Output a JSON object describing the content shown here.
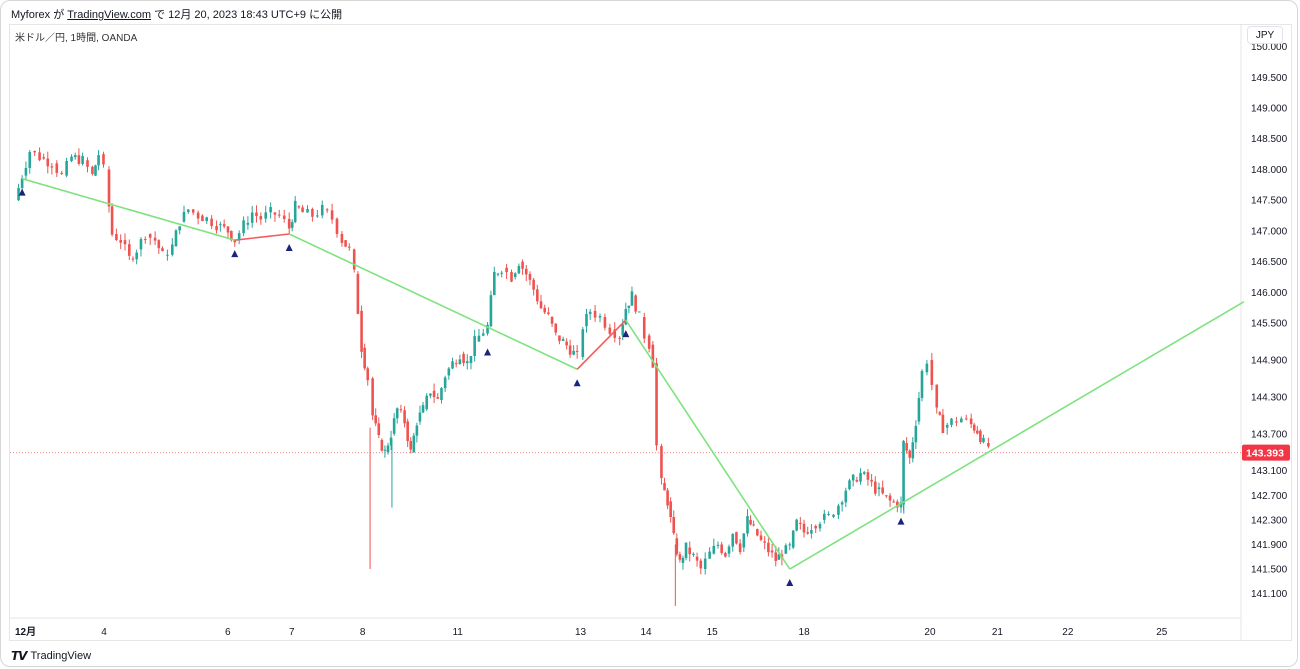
{
  "header": {
    "author": "Myforex",
    "ga": "が",
    "site": "TradingView.com",
    "de": "で",
    "published": "12月 20, 2023 18:43 UTC+9 に公開"
  },
  "symbol_label": "米ドル／円, 1時間, OANDA",
  "currency_button": "JPY",
  "footer": {
    "logo_icon": "tradingview-logo-icon",
    "brand": "TradingView"
  },
  "colors": {
    "up": "#26a69a",
    "down": "#ef5350",
    "trend_green": "#7ee37e",
    "trend_red": "#f45b5b",
    "marker": "#1a237e",
    "price_line": "#f28b8b",
    "price_tag": "#f23645"
  },
  "chart_data": {
    "type": "line",
    "title": "",
    "xlabel": "",
    "ylabel": "",
    "ylim": [
      140.85,
      150.35
    ],
    "y_ticks": [
      "150.000",
      "149.500",
      "149.000",
      "148.500",
      "148.000",
      "147.500",
      "147.000",
      "146.500",
      "146.000",
      "145.500",
      "144.900",
      "144.300",
      "143.700",
      "143.100",
      "142.700",
      "142.300",
      "141.900",
      "141.500",
      "141.100"
    ],
    "x_ticks": [
      {
        "label": "12月",
        "t": 0
      },
      {
        "label": "4",
        "t": 0.0726
      },
      {
        "label": "6",
        "t": 0.1733
      },
      {
        "label": "7",
        "t": 0.2254
      },
      {
        "label": "8",
        "t": 0.2831
      },
      {
        "label": "11",
        "t": 0.3584
      },
      {
        "label": "13",
        "t": 0.4581
      },
      {
        "label": "14",
        "t": 0.5114
      },
      {
        "label": "15",
        "t": 0.5652
      },
      {
        "label": "18",
        "t": 0.64
      },
      {
        "label": "20",
        "t": 0.7424
      },
      {
        "label": "21",
        "t": 0.7973
      },
      {
        "label": "22",
        "t": 0.8546
      },
      {
        "label": "25",
        "t": 0.931
      }
    ],
    "current_price": "143.393",
    "current_price_value": 143.393,
    "zigzag_segments": [
      {
        "color": "green",
        "points": [
          [
            0.0058,
            147.85
          ],
          [
            0.1788,
            146.85
          ]
        ]
      },
      {
        "color": "red",
        "points": [
          [
            0.1788,
            146.85
          ],
          [
            0.2231,
            146.95
          ]
        ]
      },
      {
        "color": "green",
        "points": [
          [
            0.2231,
            146.95
          ],
          [
            0.4574,
            144.75
          ]
        ]
      },
      {
        "color": "red",
        "points": [
          [
            0.4574,
            144.75
          ],
          [
            0.497,
            145.55
          ]
        ]
      },
      {
        "color": "green",
        "points": [
          [
            0.497,
            145.55
          ],
          [
            0.6304,
            141.5
          ]
        ]
      },
      {
        "color": "green",
        "points": [
          [
            0.6304,
            141.5
          ],
          [
            1.0,
            145.85
          ]
        ]
      }
    ],
    "markers": [
      {
        "t": 0.0058,
        "price": 147.85
      },
      {
        "t": 0.1788,
        "price": 146.85
      },
      {
        "t": 0.2231,
        "price": 146.95
      },
      {
        "t": 0.3845,
        "price": 145.25
      },
      {
        "t": 0.4574,
        "price": 144.75
      },
      {
        "t": 0.497,
        "price": 145.55
      },
      {
        "t": 0.6304,
        "price": 141.5
      },
      {
        "t": 0.7209,
        "price": 142.5
      }
    ],
    "price_path": [
      [
        0,
        147.5
      ],
      [
        0.0058,
        147.9
      ],
      [
        0.012,
        148.3
      ],
      [
        0.02,
        148.2
      ],
      [
        0.03,
        148.1
      ],
      [
        0.038,
        147.9
      ],
      [
        0.046,
        148.2
      ],
      [
        0.055,
        148.15
      ],
      [
        0.063,
        147.9
      ],
      [
        0.068,
        148.25
      ],
      [
        0.072,
        148.0
      ],
      [
        0.0765,
        147.4
      ],
      [
        0.079,
        146.95
      ],
      [
        0.086,
        146.85
      ],
      [
        0.093,
        146.55
      ],
      [
        0.099,
        146.7
      ],
      [
        0.106,
        146.95
      ],
      [
        0.114,
        146.85
      ],
      [
        0.12,
        146.6
      ],
      [
        0.128,
        146.75
      ],
      [
        0.134,
        147.15
      ],
      [
        0.141,
        147.35
      ],
      [
        0.149,
        147.25
      ],
      [
        0.156,
        147.2
      ],
      [
        0.164,
        147.1
      ],
      [
        0.1733,
        147.0
      ],
      [
        0.1788,
        146.85
      ],
      [
        0.186,
        147.1
      ],
      [
        0.193,
        147.3
      ],
      [
        0.2,
        147.2
      ],
      [
        0.208,
        147.3
      ],
      [
        0.215,
        147.25
      ],
      [
        0.2231,
        147.05
      ],
      [
        0.228,
        147.4
      ],
      [
        0.234,
        147.3
      ],
      [
        0.242,
        147.25
      ],
      [
        0.25,
        147.35
      ],
      [
        0.258,
        147.2
      ],
      [
        0.266,
        146.85
      ],
      [
        0.272,
        146.7
      ],
      [
        0.276,
        146.3
      ],
      [
        0.279,
        145.7
      ],
      [
        0.282,
        145.1
      ],
      [
        0.287,
        144.6
      ],
      [
        0.291,
        144.0
      ],
      [
        0.296,
        143.6
      ],
      [
        0.301,
        143.4
      ],
      [
        0.306,
        143.7
      ],
      [
        0.311,
        144.1
      ],
      [
        0.317,
        143.9
      ],
      [
        0.322,
        143.4
      ],
      [
        0.327,
        143.9
      ],
      [
        0.332,
        144.1
      ],
      [
        0.338,
        144.4
      ],
      [
        0.344,
        144.25
      ],
      [
        0.35,
        144.65
      ],
      [
        0.356,
        144.85
      ],
      [
        0.362,
        145.0
      ],
      [
        0.368,
        144.85
      ],
      [
        0.374,
        145.2
      ],
      [
        0.3845,
        145.45
      ],
      [
        0.39,
        146.3
      ],
      [
        0.396,
        146.4
      ],
      [
        0.404,
        146.25
      ],
      [
        0.41,
        146.5
      ],
      [
        0.416,
        146.3
      ],
      [
        0.422,
        146.05
      ],
      [
        0.428,
        145.75
      ],
      [
        0.434,
        145.6
      ],
      [
        0.44,
        145.3
      ],
      [
        0.446,
        145.2
      ],
      [
        0.4574,
        144.95
      ],
      [
        0.462,
        145.45
      ],
      [
        0.468,
        145.7
      ],
      [
        0.476,
        145.6
      ],
      [
        0.484,
        145.4
      ],
      [
        0.492,
        145.3
      ],
      [
        0.497,
        145.75
      ],
      [
        0.502,
        145.95
      ],
      [
        0.508,
        145.6
      ],
      [
        0.512,
        145.3
      ],
      [
        0.516,
        145.15
      ],
      [
        0.519,
        144.85
      ],
      [
        0.522,
        143.5
      ],
      [
        0.526,
        142.9
      ],
      [
        0.531,
        142.6
      ],
      [
        0.536,
        142.0
      ],
      [
        0.541,
        141.6
      ],
      [
        0.546,
        141.85
      ],
      [
        0.552,
        141.7
      ],
      [
        0.558,
        141.5
      ],
      [
        0.5652,
        141.75
      ],
      [
        0.572,
        141.9
      ],
      [
        0.578,
        141.75
      ],
      [
        0.584,
        142.1
      ],
      [
        0.59,
        141.85
      ],
      [
        0.596,
        142.3
      ],
      [
        0.601,
        142.15
      ],
      [
        0.607,
        141.95
      ],
      [
        0.613,
        141.8
      ],
      [
        0.619,
        141.65
      ],
      [
        0.624,
        141.75
      ],
      [
        0.6304,
        141.85
      ],
      [
        0.636,
        142.25
      ],
      [
        0.642,
        142.1
      ],
      [
        0.648,
        142.2
      ],
      [
        0.655,
        142.3
      ],
      [
        0.662,
        142.35
      ],
      [
        0.67,
        142.55
      ],
      [
        0.676,
        142.8
      ],
      [
        0.682,
        142.95
      ],
      [
        0.688,
        143.05
      ],
      [
        0.694,
        142.95
      ],
      [
        0.7,
        142.8
      ],
      [
        0.706,
        142.7
      ],
      [
        0.712,
        142.6
      ],
      [
        0.7209,
        142.55
      ],
      [
        0.723,
        143.55
      ],
      [
        0.728,
        143.3
      ],
      [
        0.733,
        143.9
      ],
      [
        0.738,
        144.7
      ],
      [
        0.742,
        144.9
      ],
      [
        0.746,
        144.5
      ],
      [
        0.75,
        144.05
      ],
      [
        0.755,
        143.8
      ],
      [
        0.762,
        143.9
      ],
      [
        0.77,
        143.95
      ],
      [
        0.778,
        143.85
      ],
      [
        0.783,
        143.75
      ],
      [
        0.788,
        143.55
      ],
      [
        0.792,
        143.5
      ]
    ]
  }
}
